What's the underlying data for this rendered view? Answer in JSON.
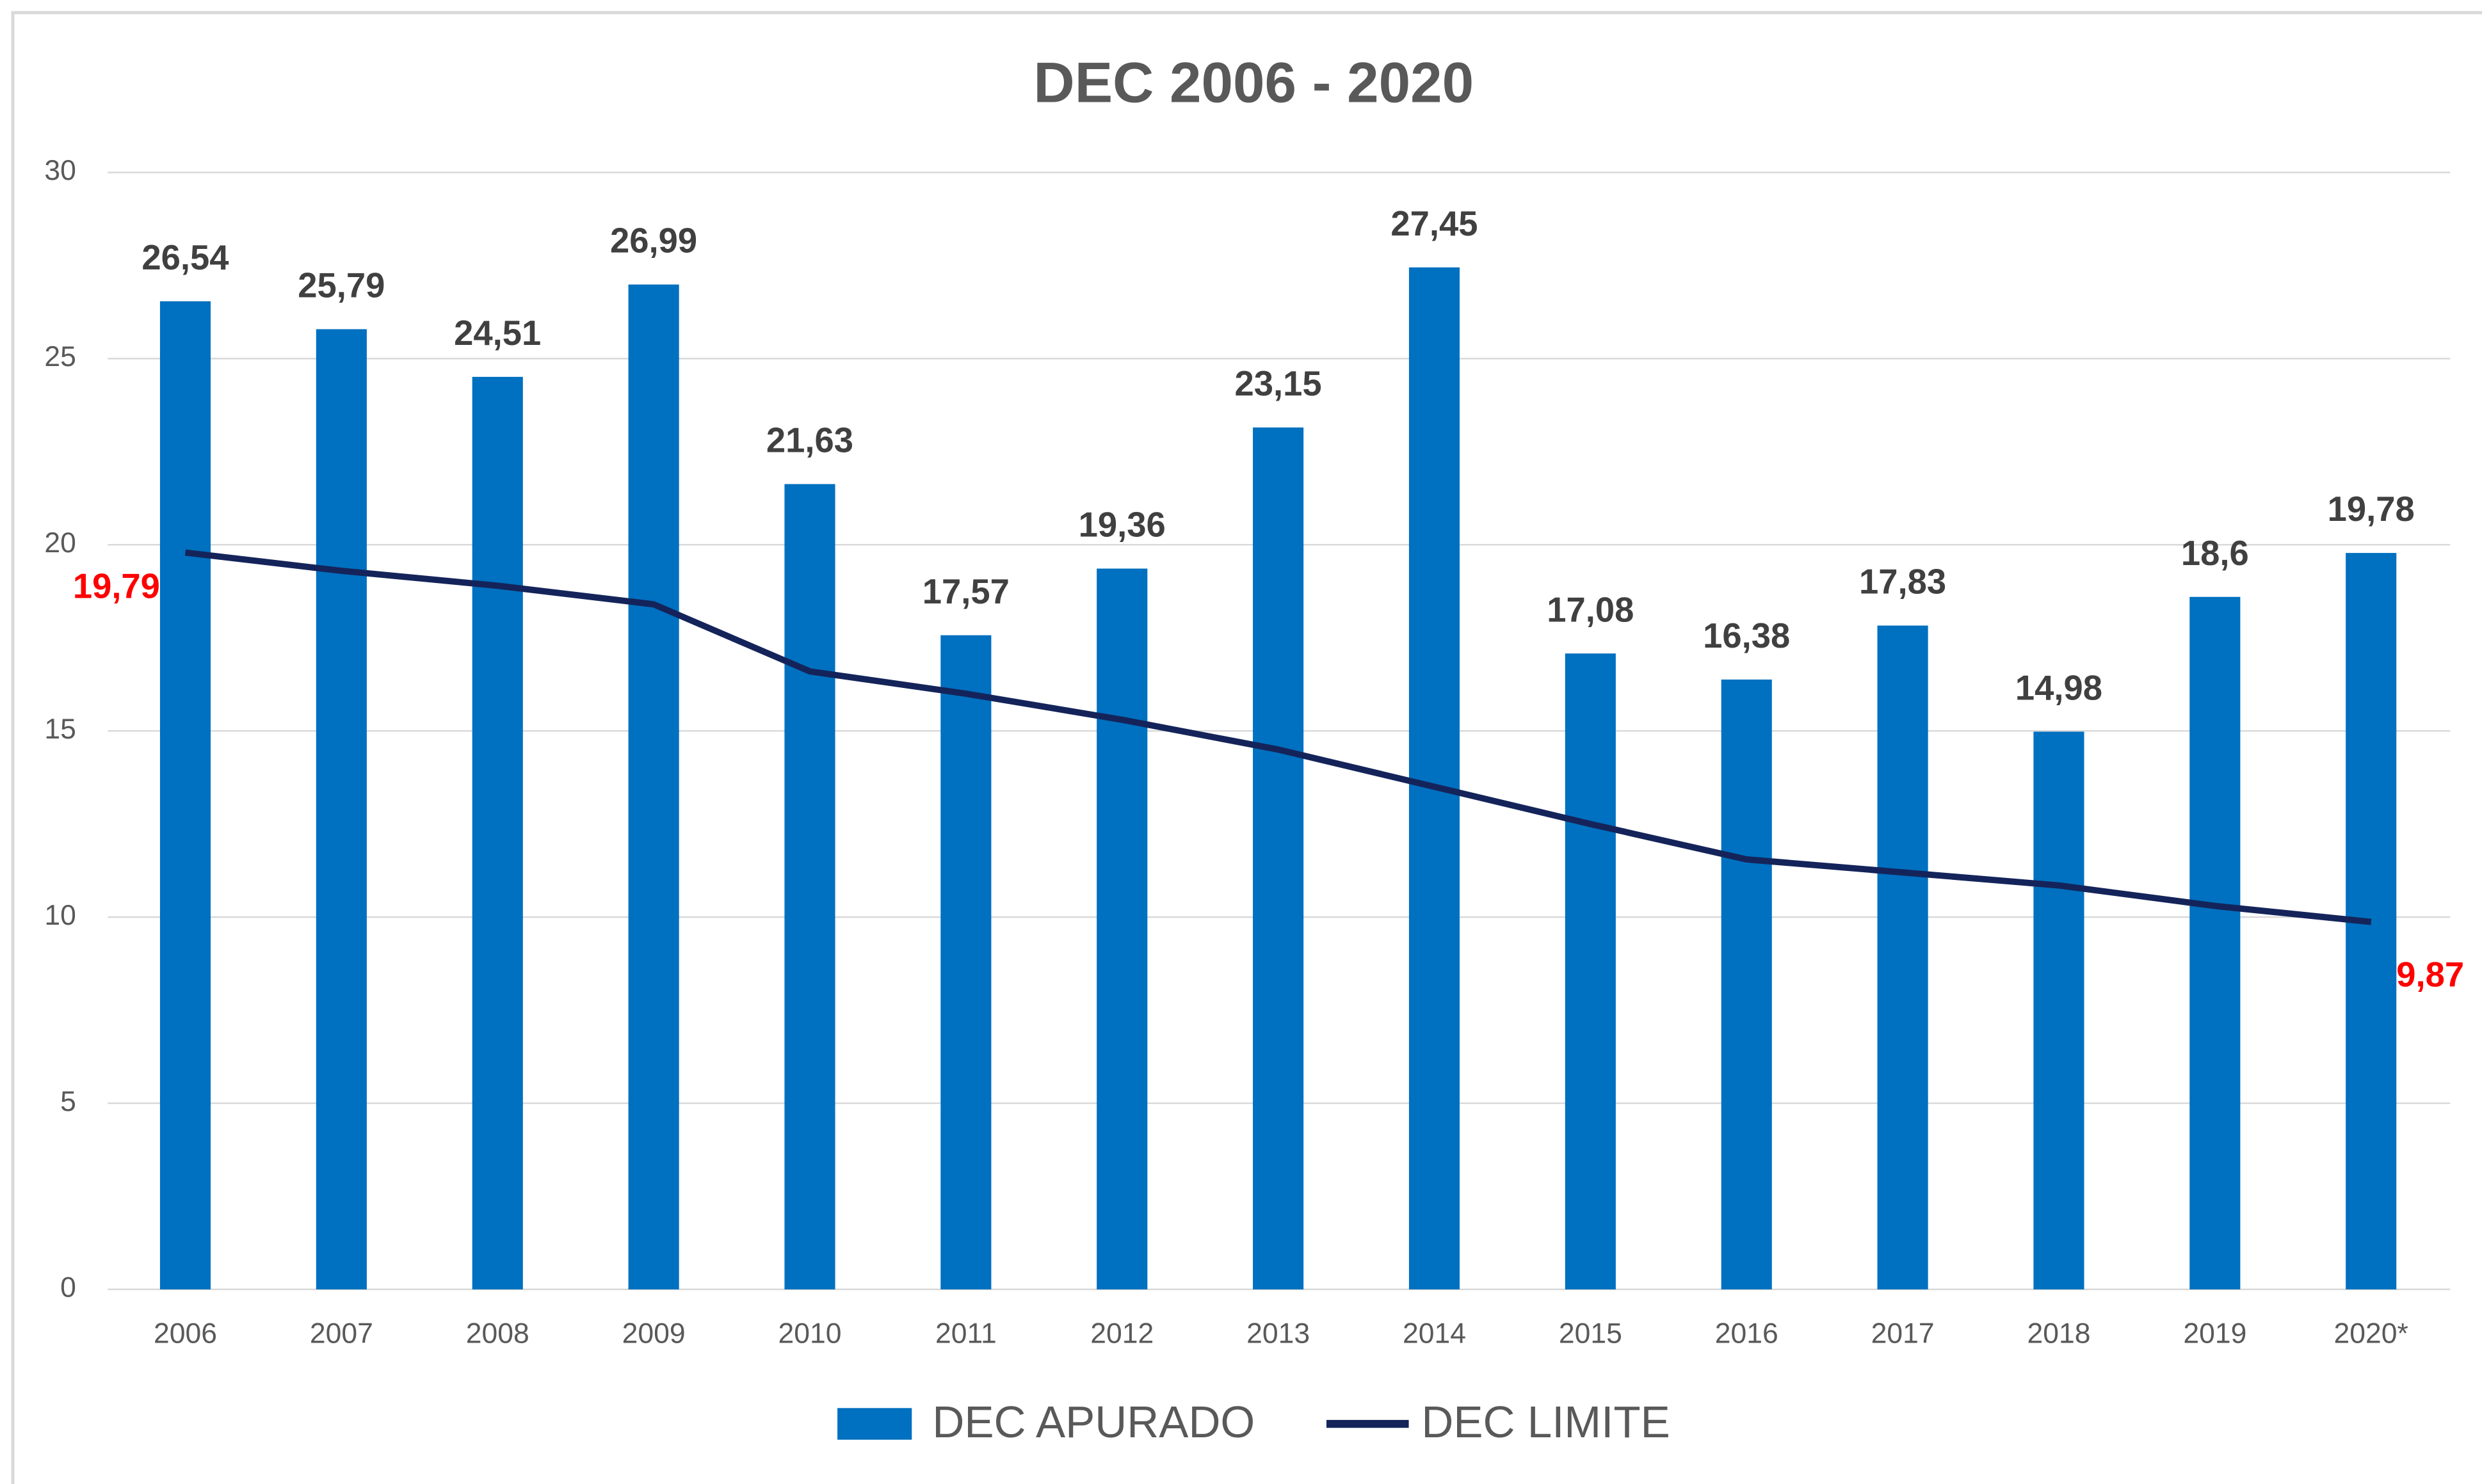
{
  "chart_data": {
    "type": "bar",
    "title": "DEC 2006 - 2020",
    "categories": [
      "2006",
      "2007",
      "2008",
      "2009",
      "2010",
      "2011",
      "2012",
      "2013",
      "2014",
      "2015",
      "2016",
      "2017",
      "2018",
      "2019",
      "2020*"
    ],
    "series": [
      {
        "name": "DEC APURADO",
        "type": "bar",
        "color": "#0070c0",
        "values": [
          26.54,
          25.79,
          24.51,
          26.99,
          21.63,
          17.57,
          19.36,
          23.15,
          27.45,
          17.08,
          16.38,
          17.83,
          14.98,
          18.6,
          19.78
        ],
        "value_labels": [
          "26,54",
          "25,79",
          "24,51",
          "26,99",
          "21,63",
          "17,57",
          "19,36",
          "23,15",
          "27,45",
          "17,08",
          "16,38",
          "17,83",
          "14,98",
          "18,6",
          "19,78"
        ]
      },
      {
        "name": "DEC LIMITE",
        "type": "line",
        "color": "#14245a",
        "values": [
          19.79,
          19.3,
          18.9,
          18.4,
          16.6,
          16.0,
          15.3,
          14.5,
          13.5,
          12.5,
          11.55,
          11.2,
          10.85,
          10.3,
          9.87
        ],
        "value_labels": [
          "19,79",
          null,
          null,
          null,
          null,
          null,
          null,
          null,
          null,
          null,
          null,
          null,
          null,
          null,
          "9,87"
        ]
      }
    ],
    "ylim": [
      0,
      30
    ],
    "yticks": [
      0,
      5,
      10,
      15,
      20,
      25,
      30
    ],
    "grid": true,
    "legend": "bottom"
  }
}
